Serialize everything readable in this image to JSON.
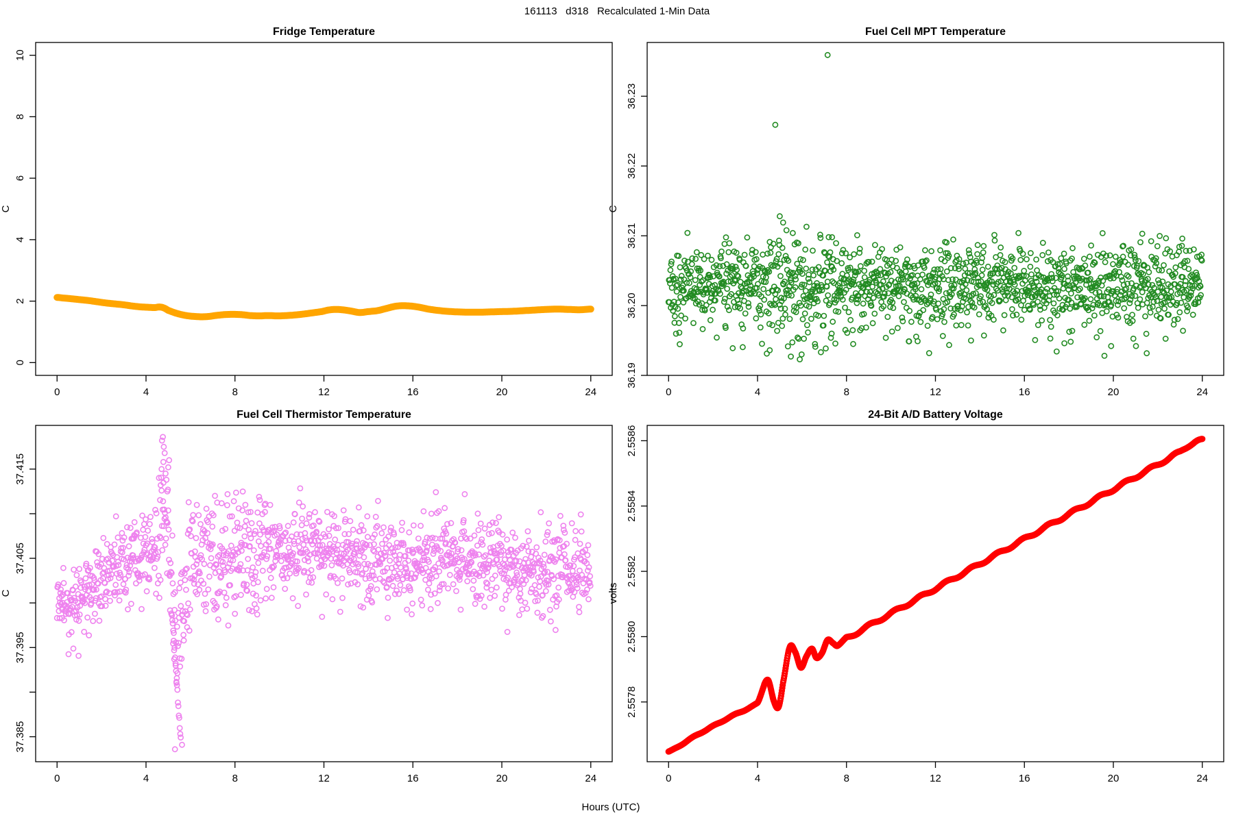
{
  "labels": {
    "main_title": "161113   d318   Recalculated 1-Min Data",
    "hours": "Hours (UTC)"
  },
  "colors": {
    "fridge_line": "#FFA500",
    "mpt_points": "#228B22",
    "thermistor_points": "#EE82EE",
    "volts_points": "#FF0000",
    "axis": "#000000",
    "background": "#FFFFFF"
  },
  "chart_data": [
    {
      "id": "fridge",
      "type": "line",
      "title": "Fridge Temperature",
      "ylabel": "C",
      "color": "#FFA500",
      "line_width": 10,
      "xlim": [
        -0.963,
        24.963
      ],
      "ylim": [
        -0.416,
        10.416
      ],
      "x_ticks": {
        "values": [
          0,
          4,
          8,
          12,
          16,
          20,
          24
        ],
        "labels": [
          "0",
          "4",
          "8",
          "12",
          "16",
          "20",
          "24"
        ]
      },
      "y_ticks": {
        "values": [
          0,
          2,
          4,
          6,
          8,
          10
        ],
        "labels": [
          "0",
          "2",
          "4",
          "6",
          "8",
          "10"
        ]
      },
      "keypoints": [
        [
          0,
          2.12
        ],
        [
          0.3,
          2.1
        ],
        [
          0.6,
          2.08
        ],
        [
          1,
          2.05
        ],
        [
          1.4,
          2.02
        ],
        [
          1.8,
          1.98
        ],
        [
          2.2,
          1.94
        ],
        [
          2.6,
          1.91
        ],
        [
          3,
          1.88
        ],
        [
          3.4,
          1.84
        ],
        [
          3.8,
          1.81
        ],
        [
          4.1,
          1.8
        ],
        [
          4.4,
          1.79
        ],
        [
          4.6,
          1.81
        ],
        [
          4.8,
          1.78
        ],
        [
          5,
          1.7
        ],
        [
          5.3,
          1.62
        ],
        [
          5.6,
          1.56
        ],
        [
          5.9,
          1.52
        ],
        [
          6.2,
          1.5
        ],
        [
          6.5,
          1.49
        ],
        [
          6.8,
          1.5
        ],
        [
          7.1,
          1.53
        ],
        [
          7.5,
          1.56
        ],
        [
          7.9,
          1.57
        ],
        [
          8.3,
          1.56
        ],
        [
          8.7,
          1.53
        ],
        [
          9.1,
          1.52
        ],
        [
          9.5,
          1.53
        ],
        [
          9.9,
          1.52
        ],
        [
          10.3,
          1.53
        ],
        [
          10.7,
          1.55
        ],
        [
          11.1,
          1.58
        ],
        [
          11.5,
          1.62
        ],
        [
          11.9,
          1.66
        ],
        [
          12.2,
          1.71
        ],
        [
          12.5,
          1.73
        ],
        [
          12.8,
          1.72
        ],
        [
          13.2,
          1.68
        ],
        [
          13.6,
          1.63
        ],
        [
          14,
          1.66
        ],
        [
          14.4,
          1.69
        ],
        [
          14.8,
          1.76
        ],
        [
          15.2,
          1.83
        ],
        [
          15.5,
          1.85
        ],
        [
          15.9,
          1.84
        ],
        [
          16.3,
          1.8
        ],
        [
          16.7,
          1.74
        ],
        [
          17.1,
          1.7
        ],
        [
          17.5,
          1.67
        ],
        [
          18,
          1.65
        ],
        [
          18.5,
          1.64
        ],
        [
          19,
          1.64
        ],
        [
          19.5,
          1.65
        ],
        [
          20,
          1.66
        ],
        [
          20.5,
          1.67
        ],
        [
          21,
          1.69
        ],
        [
          21.5,
          1.71
        ],
        [
          22,
          1.73
        ],
        [
          22.5,
          1.74
        ],
        [
          23,
          1.73
        ],
        [
          23.5,
          1.72
        ],
        [
          24,
          1.74
        ]
      ]
    },
    {
      "id": "mpt",
      "type": "scatter",
      "title": "Fuel Cell MPT Temperature",
      "ylabel": "C",
      "color": "#228B22",
      "n_points": 1440,
      "point_radius": 3.6,
      "point_stroke": 1.6,
      "xlim": [
        -0.963,
        24.963
      ],
      "ylim": [
        36.19,
        36.2377
      ],
      "x_ticks": {
        "values": [
          0,
          4,
          8,
          12,
          16,
          20,
          24
        ],
        "labels": [
          "0",
          "4",
          "8",
          "12",
          "16",
          "20",
          "24"
        ]
      },
      "y_ticks": {
        "values": [
          36.19,
          36.2,
          36.21,
          36.22,
          36.23
        ],
        "labels": [
          "36.19",
          "36.20",
          "36.21",
          "36.22",
          "36.23"
        ]
      },
      "base_keypoints": [
        [
          0,
          36.203
        ],
        [
          24,
          36.203
        ]
      ],
      "sd": 0.0026,
      "sd_windows": [
        {
          "from": 4.4,
          "to": 7.6,
          "sd": 0.0037
        }
      ],
      "y_clamp": [
        36.1917,
        36.2108
      ],
      "y_clamp_window": [
        36.1915,
        36.2135
      ],
      "tails": [
        {
          "p": 0.025,
          "lo": 36.1925,
          "hi": 36.1978
        },
        {
          "p": 0.012,
          "lo": 36.2072,
          "hi": 36.2105
        }
      ],
      "outliers": [
        [
          7.15,
          36.2359
        ],
        [
          4.8,
          36.2259
        ],
        [
          5.0,
          36.2128
        ],
        [
          5.15,
          36.2119
        ],
        [
          5.3,
          36.2108
        ],
        [
          6.2,
          36.2113
        ],
        [
          7.35,
          36.2098
        ],
        [
          4.55,
          36.1936
        ],
        [
          5.5,
          36.1927
        ],
        [
          5.9,
          36.1923
        ],
        [
          6.6,
          36.1941
        ],
        [
          8.3,
          36.1945
        ],
        [
          21.3,
          36.2103
        ],
        [
          23.1,
          36.2096
        ],
        [
          17.8,
          36.1946
        ],
        [
          19.9,
          36.1942
        ],
        [
          11.2,
          36.1949
        ],
        [
          13.6,
          36.195
        ]
      ],
      "seed": 20161113
    },
    {
      "id": "therm",
      "type": "scatter",
      "title": "Fuel Cell Thermistor Temperature",
      "ylabel": "C",
      "color": "#EE82EE",
      "n_points": 1440,
      "point_radius": 3.6,
      "point_stroke": 1.6,
      "xlim": [
        -0.963,
        24.963
      ],
      "ylim": [
        37.3822,
        37.4199
      ],
      "x_ticks": {
        "values": [
          0,
          4,
          8,
          12,
          16,
          20,
          24
        ],
        "labels": [
          "0",
          "4",
          "8",
          "12",
          "16",
          "20",
          "24"
        ]
      },
      "y_ticks": {
        "values": [
          37.385,
          37.39,
          37.395,
          37.4,
          37.405,
          37.41,
          37.415
        ],
        "labels": [
          "37.385",
          "",
          "37.395",
          "",
          "37.405",
          "",
          "37.415"
        ]
      },
      "base_keypoints": [
        [
          0,
          37.4003
        ],
        [
          0.5,
          37.4
        ],
        [
          1,
          37.4003
        ],
        [
          1.5,
          37.401
        ],
        [
          2,
          37.4022
        ],
        [
          2.5,
          37.4034
        ],
        [
          3,
          37.4045
        ],
        [
          3.5,
          37.4052
        ],
        [
          4,
          37.406
        ],
        [
          4.4,
          37.4068
        ],
        [
          4.7,
          37.4085
        ],
        [
          4.9,
          37.4075
        ],
        [
          5.1,
          37.403
        ],
        [
          5.35,
          37.396
        ],
        [
          5.55,
          37.3975
        ],
        [
          5.8,
          37.402
        ],
        [
          6,
          37.404
        ],
        [
          6.5,
          37.4043
        ],
        [
          7,
          37.4045
        ],
        [
          7.5,
          37.4048
        ],
        [
          8,
          37.4052
        ],
        [
          9,
          37.4058
        ],
        [
          10,
          37.4058
        ],
        [
          11,
          37.4062
        ],
        [
          12,
          37.4058
        ],
        [
          13,
          37.4055
        ],
        [
          14,
          37.405
        ],
        [
          15,
          37.4046
        ],
        [
          16,
          37.4046
        ],
        [
          17,
          37.405
        ],
        [
          18,
          37.4054
        ],
        [
          19,
          37.405
        ],
        [
          20,
          37.4044
        ],
        [
          21,
          37.4037
        ],
        [
          22,
          37.4036
        ],
        [
          23,
          37.404
        ],
        [
          24,
          37.4036
        ]
      ],
      "sd": 0.0023,
      "sd_windows": [
        {
          "from": 4.4,
          "to": 9.5,
          "sd": 0.0036
        }
      ],
      "clamp_offsets": [
        -0.0085,
        0.009
      ],
      "tails_rel": [
        {
          "p": 0.02,
          "lo_off": -0.0075,
          "hi_off": -0.004
        },
        {
          "p": 0.008,
          "lo_off": 0.004,
          "hi_off": 0.0075
        }
      ],
      "events": [
        {
          "name": "spike-cluster",
          "points": [
            [
              4.72,
              37.4182
            ],
            [
              4.76,
              37.4186
            ],
            [
              4.8,
              37.4175
            ],
            [
              4.84,
              37.4168
            ],
            [
              4.78,
              37.4158
            ],
            [
              4.7,
              37.415
            ],
            [
              4.88,
              37.4145
            ],
            [
              4.92,
              37.4138
            ],
            [
              4.66,
              37.4132
            ],
            [
              4.96,
              37.4125
            ],
            [
              5.0,
              37.4152
            ],
            [
              5.04,
              37.416
            ]
          ]
        },
        {
          "name": "dip-chain",
          "t_start": 5.16,
          "t_step": 0.021,
          "count": 20,
          "y_start": 37.3988,
          "y_end": 37.3852,
          "noise": 0.0007
        },
        {
          "name": "low-singles",
          "points": [
            [
              5.3,
              37.3836
            ],
            [
              5.62,
              37.3841
            ]
          ]
        }
      ],
      "seed": 318
    },
    {
      "id": "volts",
      "type": "circle_line",
      "title": "24-Bit A/D Battery Voltage",
      "ylabel": "volts",
      "color": "#FF0000",
      "n_points": 1300,
      "point_radius": 3.4,
      "point_stroke": 2.4,
      "xlim": [
        -0.963,
        24.963
      ],
      "ylim": [
        2.557617,
        2.558647
      ],
      "x_ticks": {
        "values": [
          0,
          4,
          8,
          12,
          16,
          20,
          24
        ],
        "labels": [
          "0",
          "4",
          "8",
          "12",
          "16",
          "20",
          "24"
        ]
      },
      "y_ticks": {
        "values": [
          2.5578,
          2.558,
          2.5582,
          2.5584,
          2.5586
        ],
        "labels": [
          "2.5578",
          "2.5580",
          "2.5582",
          "2.5584",
          "2.5586"
        ]
      },
      "keypoints": [
        [
          0,
          2.557648
        ],
        [
          1,
          2.557688
        ],
        [
          2,
          2.557726
        ],
        [
          3,
          2.557762
        ],
        [
          4,
          2.557797
        ],
        [
          4.45,
          2.557868
        ],
        [
          4.75,
          2.5578
        ],
        [
          4.95,
          2.557785
        ],
        [
          5.15,
          2.55786
        ],
        [
          5.45,
          2.557968
        ],
        [
          5.7,
          2.557952
        ],
        [
          5.95,
          2.557905
        ],
        [
          6.2,
          2.55794
        ],
        [
          6.45,
          2.557963
        ],
        [
          6.65,
          2.557935
        ],
        [
          6.9,
          2.55795
        ],
        [
          7.15,
          2.55799
        ],
        [
          7.4,
          2.55798
        ],
        [
          7.6,
          2.557972
        ],
        [
          8,
          2.557995
        ],
        [
          9,
          2.558033
        ],
        [
          10,
          2.558071
        ],
        [
          11,
          2.558109
        ],
        [
          12,
          2.558147
        ],
        [
          13,
          2.558185
        ],
        [
          14,
          2.558223
        ],
        [
          15,
          2.558261
        ],
        [
          16,
          2.558299
        ],
        [
          17,
          2.558337
        ],
        [
          18,
          2.558375
        ],
        [
          19,
          2.558413
        ],
        [
          20,
          2.558451
        ],
        [
          21,
          2.558489
        ],
        [
          22,
          2.558527
        ],
        [
          23,
          2.558565
        ],
        [
          23.6,
          2.558594
        ],
        [
          24,
          2.558601
        ]
      ],
      "wiggles": [
        {
          "from": 0,
          "to": 4.3,
          "amp": 1.5e-06,
          "period": 0.9
        },
        {
          "from": 7.6,
          "to": 24,
          "amp": 4.5e-06,
          "period": 1.15
        }
      ]
    }
  ]
}
